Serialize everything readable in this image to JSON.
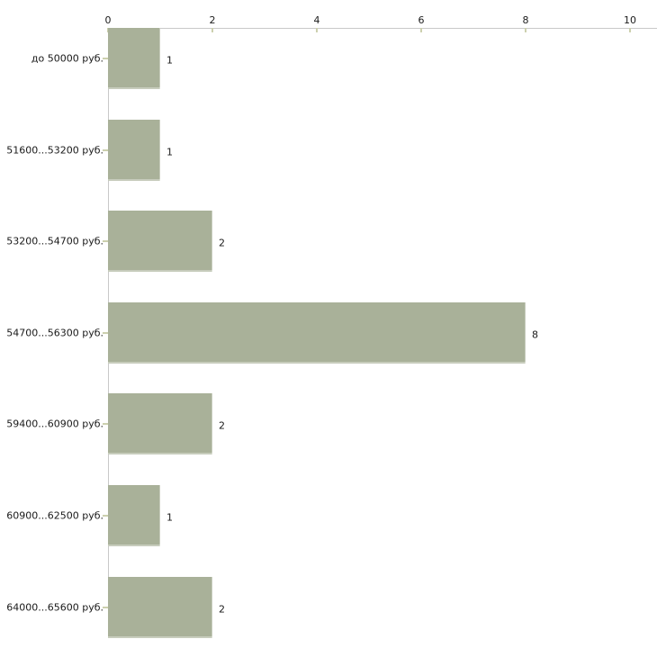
{
  "chart_data": {
    "type": "bar",
    "orientation": "horizontal",
    "title": "",
    "categories": [
      "до 50000 руб.",
      "51600...53200 руб.",
      "53200...54700 руб.",
      "54700...56300 руб.",
      "59400...60900 руб.",
      "60900...62500 руб.",
      "64000...65600 руб."
    ],
    "values": [
      1,
      1,
      2,
      8,
      2,
      1,
      2
    ],
    "xlim": [
      0,
      10
    ],
    "x_ticks": [
      0,
      2,
      4,
      6,
      8,
      10
    ],
    "x_tick_labels": [
      "0",
      "2",
      "4",
      "6",
      "8",
      "10"
    ],
    "value_labels": [
      "1",
      "1",
      "2",
      "8",
      "2",
      "1",
      "2"
    ],
    "legend": "none",
    "grid": false,
    "axis_position": "top",
    "colors": {
      "bar_fill": "#a9b199",
      "axis_line": "#c9c9c9",
      "tick_mark": "#ccd0ae",
      "text": "#1a1a1a",
      "background": "#ffffff"
    }
  }
}
